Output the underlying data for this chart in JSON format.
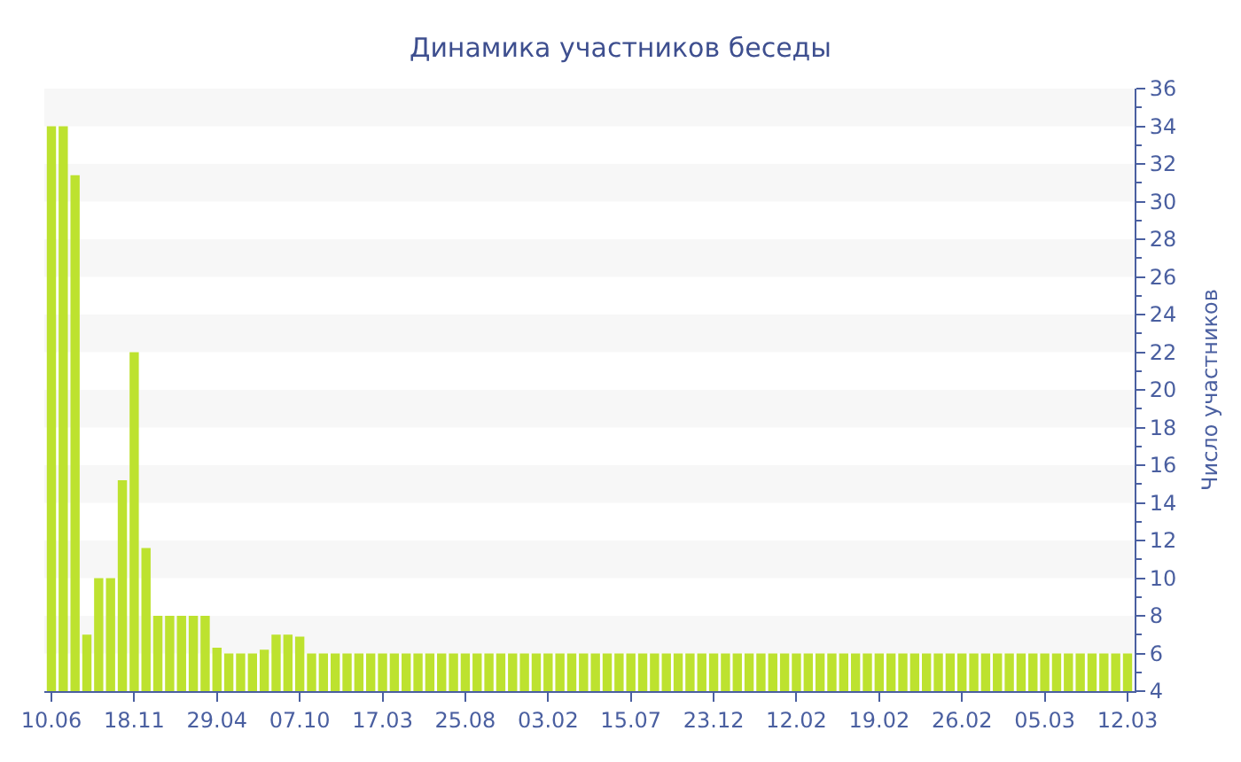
{
  "chart_data": {
    "type": "bar",
    "title": "Динамика участников беседы",
    "ylabel": "Число участников",
    "categories": [
      "10.06",
      null,
      null,
      null,
      null,
      null,
      null,
      "18.11",
      null,
      null,
      null,
      null,
      null,
      null,
      "29.04",
      null,
      null,
      null,
      null,
      null,
      null,
      "07.10",
      null,
      null,
      null,
      null,
      null,
      null,
      "17.03",
      null,
      null,
      null,
      null,
      null,
      null,
      "25.08",
      null,
      null,
      null,
      null,
      null,
      null,
      "03.02",
      null,
      null,
      null,
      null,
      null,
      null,
      "15.07",
      null,
      null,
      null,
      null,
      null,
      null,
      "23.12",
      null,
      null,
      null,
      null,
      null,
      null,
      "12.02",
      null,
      null,
      null,
      null,
      null,
      null,
      "19.02",
      null,
      null,
      null,
      null,
      null,
      null,
      "26.02",
      null,
      null,
      null,
      null,
      null,
      null,
      "05.03",
      null,
      null,
      null,
      null,
      null,
      null,
      "12.03"
    ],
    "values": [
      34,
      34,
      31.4,
      7,
      10,
      10,
      15.2,
      22,
      11.6,
      8,
      8,
      8,
      8,
      8,
      6.3,
      6,
      6,
      6,
      6.2,
      7,
      7,
      6.9,
      6,
      6,
      6,
      6,
      6,
      6,
      6,
      6,
      6,
      6,
      6,
      6,
      6,
      6,
      6,
      6,
      6,
      6,
      6,
      6,
      6,
      6,
      6,
      6,
      6,
      6,
      6,
      6,
      6,
      6,
      6,
      6,
      6,
      6,
      6,
      6,
      6,
      6,
      6,
      6,
      6,
      6,
      6,
      6,
      6,
      6,
      6,
      6,
      6,
      6,
      6,
      6,
      6,
      6,
      6,
      6,
      6,
      6,
      6,
      6,
      6,
      6,
      6,
      6,
      6,
      6,
      6,
      6,
      6,
      6
    ],
    "color": "#bde22f",
    "ylim": [
      4,
      36
    ],
    "yticks": [
      4,
      6,
      8,
      10,
      12,
      14,
      16,
      18,
      20,
      22,
      24,
      26,
      28,
      30,
      32,
      34,
      36
    ],
    "bands": [
      {
        "axis": "y",
        "from": 6,
        "to": 8,
        "color": "#f7f7f7"
      },
      {
        "axis": "y",
        "from": 10,
        "to": 12,
        "color": "#f7f7f7"
      },
      {
        "axis": "y",
        "from": 14,
        "to": 16,
        "color": "#f7f7f7"
      },
      {
        "axis": "y",
        "from": 18,
        "to": 20,
        "color": "#f7f7f7"
      },
      {
        "axis": "y",
        "from": 22,
        "to": 24,
        "color": "#f7f7f7"
      },
      {
        "axis": "y",
        "from": 26,
        "to": 28,
        "color": "#f7f7f7"
      },
      {
        "axis": "y",
        "from": 30,
        "to": 32,
        "color": "#f7f7f7"
      },
      {
        "axis": "y",
        "from": 34,
        "to": 36,
        "color": "#f7f7f7"
      }
    ],
    "grid": false,
    "legend": false
  }
}
